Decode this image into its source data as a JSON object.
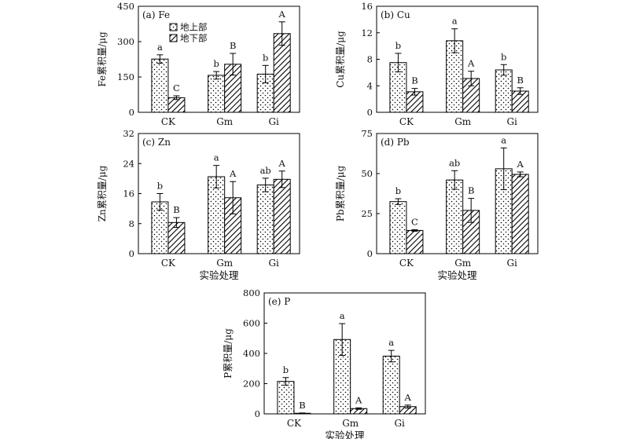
{
  "figure": {
    "legend": {
      "above_label": "地上部",
      "below_label": "地下部"
    },
    "colors": {
      "axis": "#000000",
      "bar_fill": "#ffffff",
      "pattern": "#000000"
    }
  },
  "chart_data": [
    {
      "id": "a",
      "type": "bar",
      "title": "(a) Fe",
      "ylabel": "Fe累积量/μg",
      "xlabel": "",
      "ylim": [
        0,
        450
      ],
      "yticks": [
        "0",
        "150",
        "300",
        "450"
      ],
      "categories": [
        "CK",
        "Gm",
        "Gi"
      ],
      "series": [
        {
          "name": "地上部",
          "values": [
            226,
            157,
            162
          ],
          "errors": [
            18,
            16,
            37
          ],
          "letters": [
            "a",
            "b",
            "b"
          ]
        },
        {
          "name": "地下部",
          "values": [
            62,
            204,
            334
          ],
          "errors": [
            8,
            46,
            50
          ],
          "letters": [
            "C",
            "B",
            "A"
          ]
        }
      ]
    },
    {
      "id": "b",
      "type": "bar",
      "title": "(b) Cu",
      "ylabel": "Cu累积量/μg",
      "xlabel": "",
      "ylim": [
        0,
        16
      ],
      "yticks": [
        "0",
        "4",
        "8",
        "12",
        "16"
      ],
      "categories": [
        "CK",
        "Gm",
        "Gi"
      ],
      "series": [
        {
          "name": "地上部",
          "values": [
            7.5,
            10.8,
            6.4
          ],
          "errors": [
            1.4,
            1.8,
            0.8
          ],
          "letters": [
            "b",
            "a",
            "b"
          ]
        },
        {
          "name": "地下部",
          "values": [
            3.1,
            5.1,
            3.2
          ],
          "errors": [
            0.5,
            1.1,
            0.5
          ],
          "letters": [
            "B",
            "A",
            "B"
          ]
        }
      ]
    },
    {
      "id": "c",
      "type": "bar",
      "title": "(c) Zn",
      "ylabel": "Zn累积量/μg",
      "xlabel": "实验处理",
      "ylim": [
        0,
        32
      ],
      "yticks": [
        "0",
        "8",
        "16",
        "24",
        "32"
      ],
      "categories": [
        "CK",
        "Gm",
        "Gi"
      ],
      "series": [
        {
          "name": "地上部",
          "values": [
            13.8,
            20.5,
            18.3
          ],
          "errors": [
            2.2,
            3.0,
            1.8
          ],
          "letters": [
            "b",
            "a",
            "ab"
          ]
        },
        {
          "name": "地下部",
          "values": [
            8.3,
            14.9,
            19.8
          ],
          "errors": [
            1.3,
            4.3,
            2.2
          ],
          "letters": [
            "B",
            "A",
            "A"
          ]
        }
      ]
    },
    {
      "id": "d",
      "type": "bar",
      "title": "(d) Pb",
      "ylabel": "Pb累积量/μg",
      "xlabel": "实验处理",
      "ylim": [
        0,
        75
      ],
      "yticks": [
        "0",
        "25",
        "50",
        "75"
      ],
      "categories": [
        "CK",
        "Gm",
        "Gi"
      ],
      "series": [
        {
          "name": "地上部",
          "values": [
            32.5,
            46.0,
            53.0
          ],
          "errors": [
            1.8,
            5.8,
            13.0
          ],
          "letters": [
            "b",
            "ab",
            "a"
          ]
        },
        {
          "name": "地下部",
          "values": [
            14.5,
            27.0,
            49.5
          ],
          "errors": [
            0.5,
            7.5,
            1.5
          ],
          "letters": [
            "C",
            "B",
            "A"
          ]
        }
      ]
    },
    {
      "id": "e",
      "type": "bar",
      "title": "(e) P",
      "ylabel": "P累积量/μg",
      "xlabel": "实验处理",
      "ylim": [
        0,
        800
      ],
      "yticks": [
        "0",
        "200",
        "400",
        "600",
        "800"
      ],
      "categories": [
        "CK",
        "Gm",
        "Gi"
      ],
      "series": [
        {
          "name": "地上部",
          "values": [
            215,
            492,
            382
          ],
          "errors": [
            25,
            105,
            38
          ],
          "letters": [
            "b",
            "a",
            "a"
          ]
        },
        {
          "name": "地下部",
          "values": [
            4,
            35,
            48
          ],
          "errors": [
            2,
            5,
            10
          ],
          "letters": [
            "B",
            "A",
            "A"
          ]
        }
      ]
    }
  ]
}
